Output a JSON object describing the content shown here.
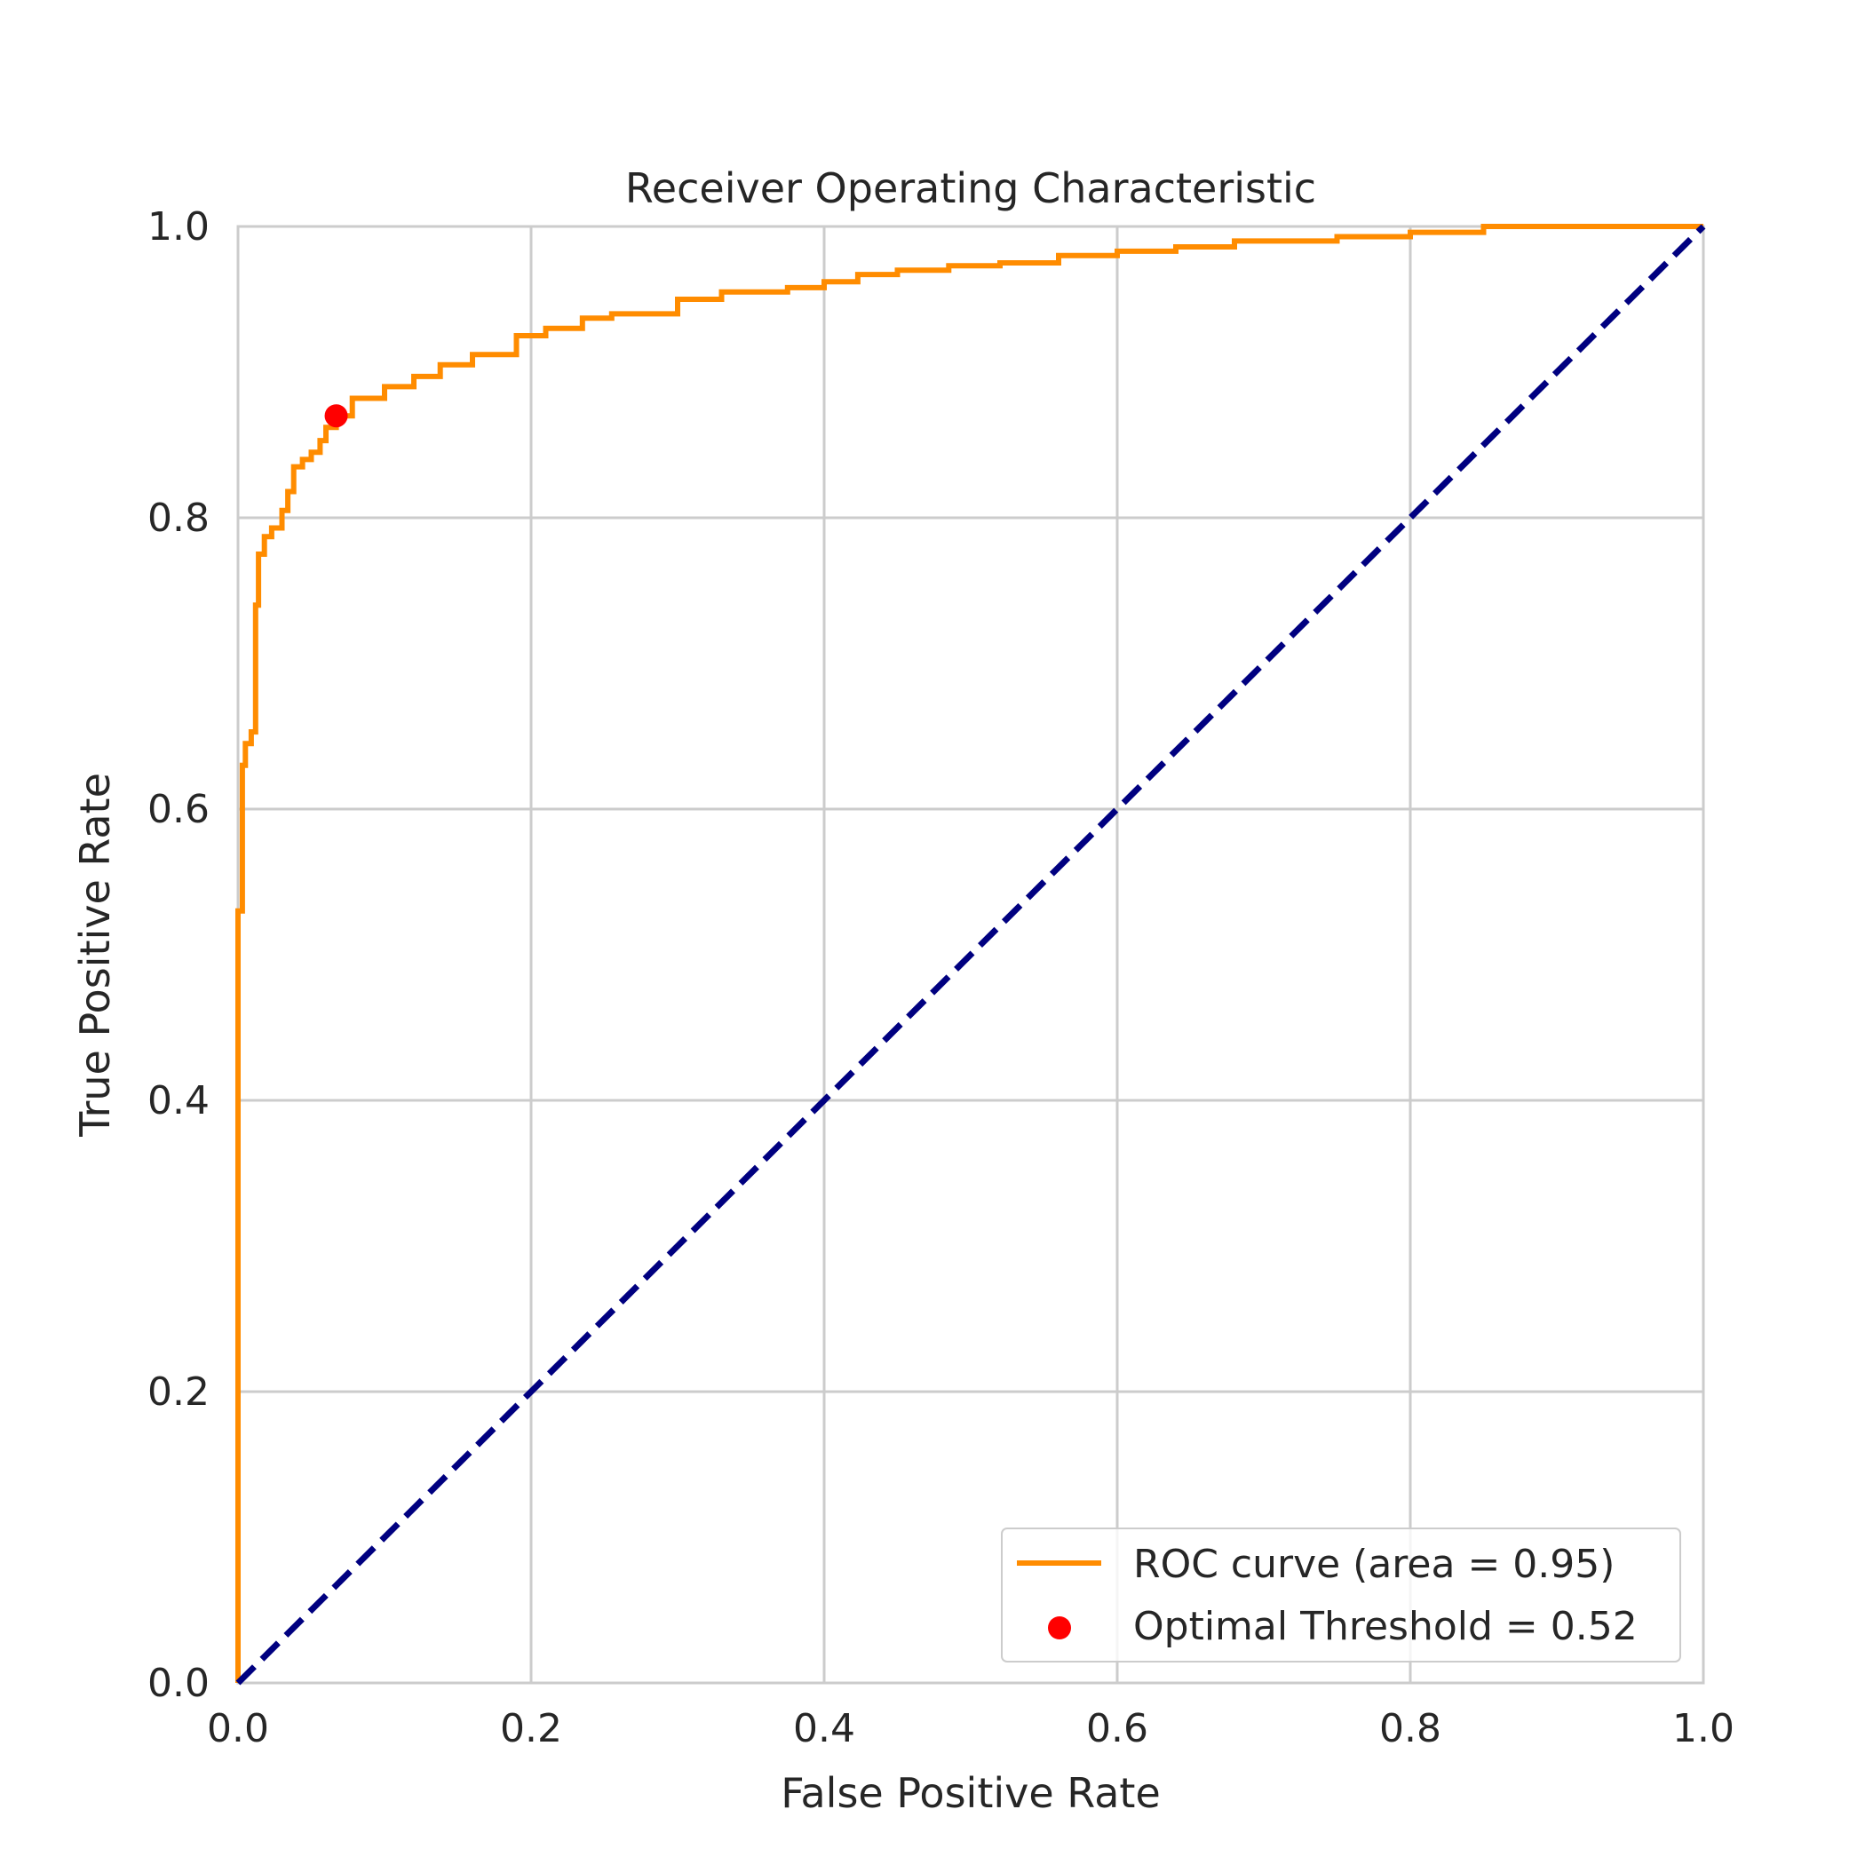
{
  "chart_data": {
    "type": "line",
    "title": "Receiver Operating Characteristic",
    "xlabel": "False Positive Rate",
    "ylabel": "True Positive Rate",
    "xlim": [
      0.0,
      1.0
    ],
    "ylim": [
      0.0,
      1.0
    ],
    "xticks": [
      "0.0",
      "0.2",
      "0.4",
      "0.6",
      "0.8",
      "1.0"
    ],
    "yticks": [
      "0.0",
      "0.2",
      "0.4",
      "0.6",
      "0.8",
      "1.0"
    ],
    "grid": true,
    "legend_position": "lower-right",
    "series": [
      {
        "name": "ROC curve (area = 0.95)",
        "kind": "line",
        "color": "#ff8c00",
        "x": [
          0.0,
          0.0,
          0.003,
          0.003,
          0.005,
          0.005,
          0.009,
          0.009,
          0.012,
          0.012,
          0.014,
          0.014,
          0.018,
          0.018,
          0.023,
          0.023,
          0.03,
          0.03,
          0.034,
          0.034,
          0.038,
          0.038,
          0.044,
          0.044,
          0.05,
          0.05,
          0.056,
          0.056,
          0.06,
          0.06,
          0.067,
          0.067,
          0.078,
          0.078,
          0.1,
          0.1,
          0.12,
          0.12,
          0.138,
          0.138,
          0.16,
          0.16,
          0.19,
          0.19,
          0.21,
          0.21,
          0.235,
          0.235,
          0.255,
          0.255,
          0.3,
          0.3,
          0.33,
          0.33,
          0.375,
          0.375,
          0.4,
          0.4,
          0.423,
          0.423,
          0.45,
          0.45,
          0.485,
          0.485,
          0.52,
          0.52,
          0.56,
          0.56,
          0.6,
          0.6,
          0.64,
          0.64,
          0.68,
          0.68,
          0.75,
          0.75,
          0.8,
          0.8,
          0.85,
          0.85,
          1.0
        ],
        "y": [
          0.0,
          0.53,
          0.53,
          0.63,
          0.63,
          0.645,
          0.645,
          0.653,
          0.653,
          0.74,
          0.74,
          0.775,
          0.775,
          0.787,
          0.787,
          0.793,
          0.793,
          0.805,
          0.805,
          0.818,
          0.818,
          0.835,
          0.835,
          0.84,
          0.84,
          0.845,
          0.845,
          0.853,
          0.853,
          0.862,
          0.862,
          0.87,
          0.87,
          0.882,
          0.882,
          0.89,
          0.89,
          0.897,
          0.897,
          0.905,
          0.905,
          0.912,
          0.912,
          0.925,
          0.925,
          0.93,
          0.93,
          0.937,
          0.937,
          0.94,
          0.94,
          0.95,
          0.95,
          0.955,
          0.955,
          0.958,
          0.958,
          0.962,
          0.962,
          0.967,
          0.967,
          0.97,
          0.97,
          0.973,
          0.973,
          0.975,
          0.975,
          0.98,
          0.98,
          0.983,
          0.983,
          0.986,
          0.986,
          0.99,
          0.99,
          0.993,
          0.993,
          0.996,
          0.996,
          1.0,
          1.0
        ]
      },
      {
        "name": "",
        "kind": "dashed",
        "color": "#000080",
        "x": [
          0.0,
          1.0
        ],
        "y": [
          0.0,
          1.0
        ]
      },
      {
        "name": "Optimal Threshold = 0.52",
        "kind": "scatter",
        "color": "#ff0000",
        "x": [
          0.067
        ],
        "y": [
          0.87
        ]
      }
    ]
  }
}
